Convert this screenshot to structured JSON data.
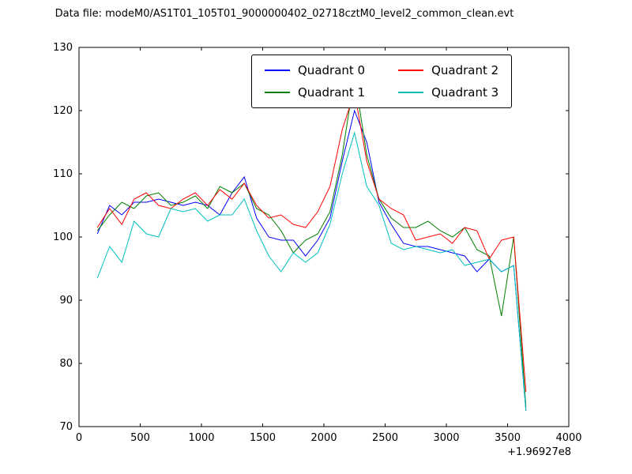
{
  "title": "Data file: modeM0/AS1T01_105T01_9000000402_02718cztM0_level2_common_clean.evt",
  "chart_data": {
    "type": "line",
    "title": "Data file: modeM0/AS1T01_105T01_9000000402_02718cztM0_level2_common_clean.evt",
    "xlabel": "",
    "ylabel": "",
    "x_offset_label": "+1.96927e8",
    "xlim": [
      0,
      4000
    ],
    "ylim": [
      70,
      130
    ],
    "xticks": [
      0,
      500,
      1000,
      1500,
      2000,
      2500,
      3000,
      3500,
      4000
    ],
    "yticks": [
      70,
      80,
      90,
      100,
      110,
      120,
      130
    ],
    "grid": false,
    "legend_position": "upper center",
    "x": [
      150,
      250,
      350,
      450,
      550,
      650,
      750,
      850,
      950,
      1050,
      1150,
      1250,
      1350,
      1450,
      1550,
      1650,
      1750,
      1850,
      1950,
      2050,
      2150,
      2250,
      2350,
      2450,
      2550,
      2650,
      2750,
      2850,
      2950,
      3050,
      3150,
      3250,
      3350,
      3450,
      3550,
      3650
    ],
    "series": [
      {
        "name": "Quadrant 0",
        "color": "#0000ff",
        "values": [
          100.5,
          105.0,
          103.5,
          105.5,
          105.5,
          106.0,
          105.5,
          105.0,
          105.5,
          105.0,
          103.5,
          107.0,
          109.5,
          103.0,
          100.0,
          99.5,
          99.5,
          97.0,
          99.5,
          103.0,
          112.0,
          120.0,
          115.0,
          105.5,
          102.0,
          99.0,
          98.5,
          98.5,
          98.0,
          97.5,
          97.0,
          94.5,
          96.5,
          94.5,
          95.5,
          72.5
        ]
      },
      {
        "name": "Quadrant 1",
        "color": "#008000",
        "values": [
          101.0,
          103.5,
          105.5,
          104.5,
          106.5,
          107.0,
          105.0,
          105.5,
          106.5,
          104.5,
          108.0,
          107.0,
          108.5,
          104.5,
          103.5,
          101.0,
          97.5,
          99.5,
          100.5,
          104.0,
          113.0,
          125.5,
          113.0,
          106.0,
          103.0,
          101.5,
          101.5,
          102.5,
          101.0,
          100.0,
          101.5,
          98.0,
          97.0,
          87.5,
          100.0,
          73.0
        ]
      },
      {
        "name": "Quadrant 2",
        "color": "#ff0000",
        "values": [
          101.5,
          104.5,
          102.0,
          106.0,
          107.0,
          105.0,
          104.5,
          106.0,
          107.0,
          105.0,
          107.5,
          106.0,
          108.5,
          105.0,
          103.0,
          103.5,
          102.0,
          101.5,
          104.0,
          108.0,
          117.0,
          123.0,
          112.0,
          106.0,
          104.5,
          103.5,
          99.5,
          100.0,
          100.5,
          99.0,
          101.5,
          101.0,
          96.5,
          99.5,
          100.0,
          75.5
        ]
      },
      {
        "name": "Quadrant 3",
        "color": "#00bfbf",
        "values": [
          93.5,
          98.5,
          96.0,
          102.5,
          100.5,
          100.0,
          104.5,
          104.0,
          104.5,
          102.5,
          103.5,
          103.5,
          106.0,
          101.0,
          97.0,
          94.5,
          97.5,
          96.0,
          97.5,
          102.0,
          110.0,
          116.5,
          108.0,
          105.0,
          99.0,
          98.0,
          98.5,
          98.0,
          97.5,
          98.0,
          95.5,
          96.0,
          96.5,
          94.5,
          95.5,
          72.5
        ]
      }
    ],
    "frame_color": "#000000",
    "tick_label_color": "#000000"
  }
}
